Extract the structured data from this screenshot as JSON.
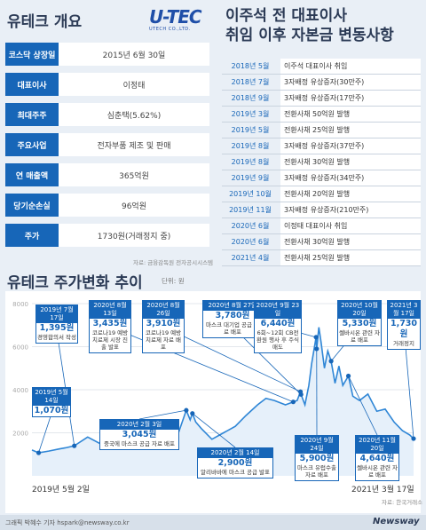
{
  "overview": {
    "title": "유테크 개요",
    "logo": "U-TEC",
    "logo_sub": "UTECH CO.,LTD.",
    "rows": [
      {
        "label": "코스닥 상장일",
        "value": "2015년 6월 30일"
      },
      {
        "label": "대표이사",
        "value": "이정태"
      },
      {
        "label": "최대주주",
        "value": "심춘택(5.62%)"
      },
      {
        "label": "주요사업",
        "value": "전자부품 제조 및 판매"
      },
      {
        "label": "연 매출액",
        "value": "365억원"
      },
      {
        "label": "당기순손실",
        "value": "96억원"
      },
      {
        "label": "주가",
        "value": "1730원(거래정지 중)"
      }
    ],
    "source": "자료: 금융감독원 전자공시시스템"
  },
  "timeline": {
    "title_line1": "이주석 전 대표이사",
    "title_line2": "취임 이후 자본금 변동사항",
    "rows": [
      {
        "date": "2018년 5월",
        "event": "이주석 대표이사 취임"
      },
      {
        "date": "2018년 7월",
        "event": "3자배정 유상증자(30만주)"
      },
      {
        "date": "2018년 9월",
        "event": "3자배정 유상증자(17만주)"
      },
      {
        "date": "2019년 3월",
        "event": "전환사채 50억원 발행"
      },
      {
        "date": "2019년 5월",
        "event": "전환사채 25억원 발행"
      },
      {
        "date": "2019년 8월",
        "event": "3자배정 유상증자(37만주)"
      },
      {
        "date": "2019년 8월",
        "event": "전환사채 30억원 발행"
      },
      {
        "date": "2019년 9월",
        "event": "3자배정 유상증자(34만주)"
      },
      {
        "date": "2019년 10월",
        "event": "전환사채 20억원 발행"
      },
      {
        "date": "2019년 11월",
        "event": "3자배정 유상증자(210만주)"
      },
      {
        "date": "2020년 6월",
        "event": "이정태 대표이사 취임"
      },
      {
        "date": "2020년 6월",
        "event": "전환사채 30억원 발행"
      },
      {
        "date": "2021년 4월",
        "event": "전환사채 25억원 발행"
      }
    ]
  },
  "chart_section": {
    "title": "유테크 주가변화 추이",
    "unit": "단위: 원",
    "start_label": "2019년 5월 2일",
    "end_label": "2021년 3월 17일",
    "source": "자료: 한국거래소"
  },
  "chart_data": {
    "type": "line",
    "title": "유테크 주가변화 추이",
    "unit": "원",
    "ylim": [
      0,
      8000
    ],
    "yticks": [
      2000,
      4000,
      6000,
      8000
    ],
    "grid": true,
    "x_start": "2019-05-02",
    "x_end": "2021-03-17",
    "series": [
      {
        "values": [
          [
            "2019-05-02",
            1200
          ],
          [
            "2019-05-14",
            1070
          ],
          [
            "2019-06-01",
            1150
          ],
          [
            "2019-06-20",
            1250
          ],
          [
            "2019-07-01",
            1300
          ],
          [
            "2019-07-17",
            1395
          ],
          [
            "2019-08-10",
            1800
          ],
          [
            "2019-09-01",
            1500
          ],
          [
            "2019-09-20",
            1750
          ],
          [
            "2019-10-10",
            1500
          ],
          [
            "2019-11-01",
            1450
          ],
          [
            "2019-11-20",
            1600
          ],
          [
            "2019-12-10",
            1450
          ],
          [
            "2020-01-01",
            1600
          ],
          [
            "2020-01-20",
            2000
          ],
          [
            "2020-02-03",
            3045
          ],
          [
            "2020-02-10",
            2600
          ],
          [
            "2020-02-14",
            2900
          ],
          [
            "2020-02-20",
            2500
          ],
          [
            "2020-03-01",
            2200
          ],
          [
            "2020-03-20",
            1700
          ],
          [
            "2020-04-10",
            2000
          ],
          [
            "2020-05-01",
            2300
          ],
          [
            "2020-05-20",
            2800
          ],
          [
            "2020-06-10",
            3300
          ],
          [
            "2020-06-25",
            3600
          ],
          [
            "2020-07-10",
            3500
          ],
          [
            "2020-07-30",
            3300
          ],
          [
            "2020-08-13",
            3435
          ],
          [
            "2020-08-20",
            3500
          ],
          [
            "2020-08-26",
            3910
          ],
          [
            "2020-08-27",
            3780
          ],
          [
            "2020-09-03",
            3300
          ],
          [
            "2020-09-10",
            4200
          ],
          [
            "2020-09-15",
            5200
          ],
          [
            "2020-09-23",
            6440
          ],
          [
            "2020-09-24",
            5900
          ],
          [
            "2020-09-28",
            6900
          ],
          [
            "2020-10-02",
            6200
          ],
          [
            "2020-10-08",
            5000
          ],
          [
            "2020-10-14",
            5800
          ],
          [
            "2020-10-20",
            5330
          ],
          [
            "2020-10-27",
            4300
          ],
          [
            "2020-11-03",
            5100
          ],
          [
            "2020-11-10",
            4200
          ],
          [
            "2020-11-20",
            4640
          ],
          [
            "2020-11-28",
            3700
          ],
          [
            "2020-12-10",
            3500
          ],
          [
            "2020-12-25",
            3800
          ],
          [
            "2021-01-10",
            3000
          ],
          [
            "2021-01-25",
            3100
          ],
          [
            "2021-02-10",
            2500
          ],
          [
            "2021-02-25",
            2100
          ],
          [
            "2021-03-10",
            1900
          ],
          [
            "2021-03-17",
            1730
          ]
        ]
      }
    ],
    "annotations": [
      {
        "date": "2019년 5월 14일",
        "value": "1,070원",
        "desc": ""
      },
      {
        "date": "2019년 7월 17일",
        "value": "1,395원",
        "desc": "경영합의서 작성"
      },
      {
        "date": "2020년 2월 3일",
        "value": "3,045원",
        "desc": "중국에 마스크 공급 자료 배포"
      },
      {
        "date": "2020년 2월 14일",
        "value": "2,900원",
        "desc": "알리바바에 마스크 공급 발표"
      },
      {
        "date": "2020년 8월 13일",
        "value": "3,435원",
        "desc": "코로나19 예방치료제 시장 진출 발표"
      },
      {
        "date": "2020년 8월 26일",
        "value": "3,910원",
        "desc": "코로나19 예방치료제 자료 배포"
      },
      {
        "date": "2020년 8월 27일",
        "value": "3,780원",
        "desc": "마스크 대기업 공급 자료 배포"
      },
      {
        "date": "2020년 9월 23일",
        "value": "6,440원",
        "desc": "6회~12회 CB전환원 행사 후 주식매도"
      },
      {
        "date": "2020년 9월 24일",
        "value": "5,900원",
        "desc": "마스크 유럽수출 자료 배포"
      },
      {
        "date": "2020년 10월 20일",
        "value": "5,330원",
        "desc": "쎌바시온 관련 자료 배포"
      },
      {
        "date": "2020년 11월 20일",
        "value": "4,640원",
        "desc": "쎌바시온 관련 자료 배포"
      },
      {
        "date": "2021년 3월 17일",
        "value": "1,730원",
        "desc": "거래정지"
      }
    ]
  },
  "footer": {
    "credit": "그래픽 박혜수 기자 hspark@newsway.co.kr",
    "brand": "Newsway"
  },
  "colors": {
    "accent": "#1766b8",
    "line": "#2f86d6",
    "navy": "#2b3a55"
  }
}
